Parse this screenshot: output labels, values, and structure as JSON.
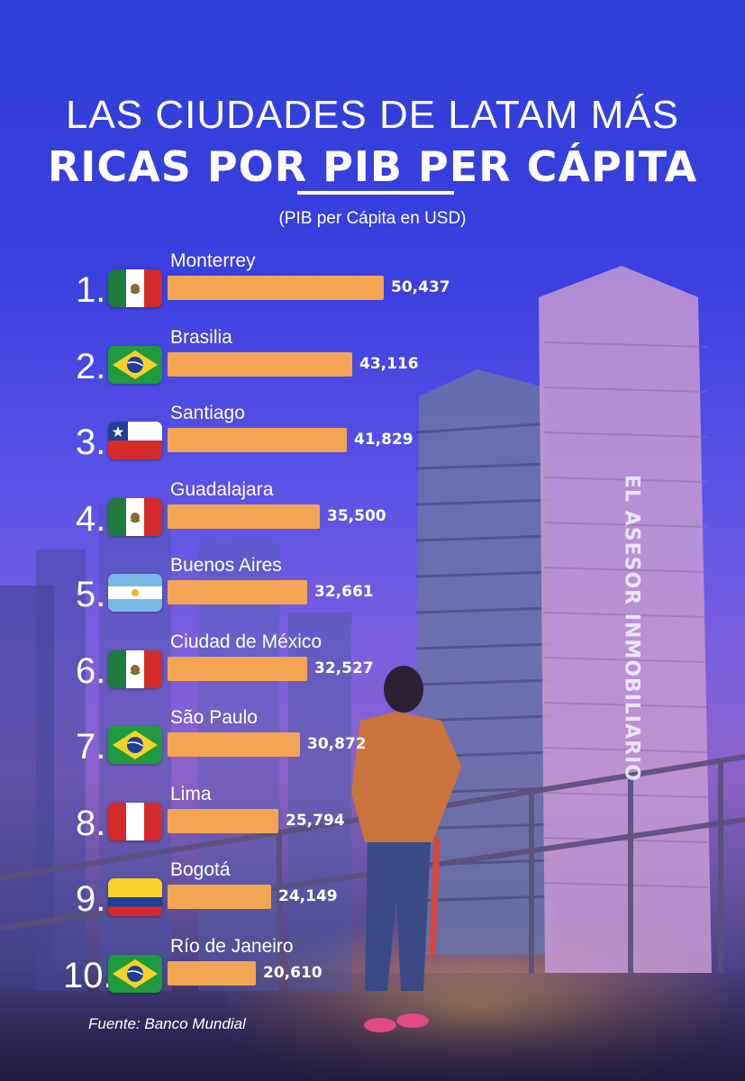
{
  "title_line1": "LAS CIUDADES DE LATAM MÁS",
  "title_line2": "RICAS POR PIB PER CÁPITA",
  "subtitle": "(PIB per Cápita en USD)",
  "watermark": "EL ASESOR INMOBILIARIO",
  "source": "Fuente: Banco Mundial",
  "colors": {
    "bar": "#f4a553",
    "text": "#ffffff"
  },
  "chart_data": {
    "type": "bar",
    "orientation": "horizontal",
    "title": "LAS CIUDADES DE LATAM MÁS RICAS POR PIB PER CÁPITA",
    "subtitle": "(PIB per Cápita en USD)",
    "categories": [
      "Monterrey",
      "Brasilia",
      "Santiago",
      "Guadalajara",
      "Buenos Aires",
      "Ciudad de México",
      "São Paulo",
      "Lima",
      "Bogotá",
      "Río de Janeiro"
    ],
    "values": [
      50437,
      43116,
      41829,
      35500,
      32661,
      32527,
      30872,
      25794,
      24149,
      20610
    ],
    "labels": [
      "50,437",
      "43,116",
      "41,829",
      "35,500",
      "32,661",
      "32,527",
      "30,872",
      "25,794",
      "24,149",
      "20,610"
    ],
    "ranks": [
      "1.",
      "2.",
      "3.",
      "4.",
      "5.",
      "6.",
      "7.",
      "8.",
      "9.",
      "10."
    ],
    "flags": [
      "mexico",
      "brazil",
      "chile",
      "mexico",
      "argentina",
      "mexico",
      "brazil",
      "peru",
      "colombia",
      "brazil"
    ],
    "xlim": [
      0,
      50437
    ]
  }
}
